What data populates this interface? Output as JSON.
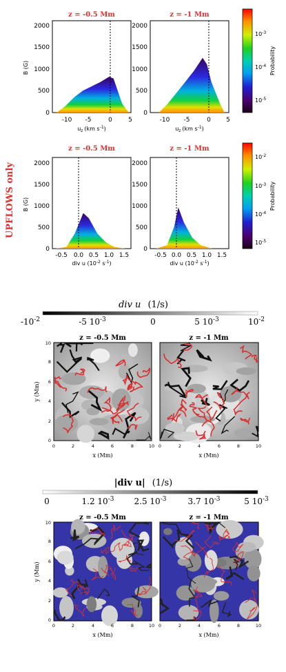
{
  "side_label": "UPFLOWS only",
  "side_label_color": "#e03030",
  "title_color": "#e03030",
  "histograms": {
    "ylabel": "B (G)",
    "yticks": [
      "0",
      "500",
      "1000",
      "1500",
      "2000"
    ],
    "row1_xlabel": "u",
    "row1_xlabel_sub": "z",
    "row1_xlabel_unit": "(km s",
    "row1_xlabel_unit_exp": "-1",
    "row1_xlabel_close": ")",
    "row1_xticks": [
      "-10",
      "-5",
      "0",
      "5"
    ],
    "row2_xlabel": "div u (10",
    "row2_xlabel_exp": "-2",
    "row2_xlabel_unit": " s",
    "row2_xlabel_unit_exp": "-1",
    "row2_xlabel_close": ")",
    "row2_xticks": [
      "-0.5",
      "0.0",
      "0.5",
      "1.0",
      "1.5"
    ],
    "titles": [
      "z = -0.5 Mm",
      "z = -1 Mm",
      "z = -0.5 Mm",
      "z = -1 Mm"
    ],
    "colorbar_label": "Probability",
    "colorbar1_ticks": [
      "10",
      "10",
      "10"
    ],
    "colorbar1_exps": [
      "-3",
      "-4",
      "-5"
    ],
    "colorbar2_ticks": [
      "10",
      "10",
      "10",
      "10"
    ],
    "colorbar2_exps": [
      "-2",
      "-3",
      "-4",
      "-5"
    ]
  },
  "map1": {
    "title": "div u",
    "unit": "(1/s)",
    "ticks": [
      "-10",
      "-5 10",
      "0",
      "5 10",
      "10"
    ],
    "tick_exps": [
      "-2",
      "-3",
      "",
      "-3",
      "-2"
    ],
    "panel_titles": [
      "z = -0.5 Mm",
      "z = -1 Mm"
    ],
    "xlabel": "x (Mm)",
    "ylabel": "y (Mm)",
    "axis_ticks": [
      "0",
      "2",
      "4",
      "6",
      "8",
      "10"
    ]
  },
  "map2": {
    "title": "|div u|",
    "unit": "(1/s)",
    "ticks": [
      "0",
      "1.2 10",
      "2.5 10",
      "3.7 10",
      "5 10"
    ],
    "tick_exps": [
      "",
      "-3",
      "-3",
      "-3",
      "-3"
    ],
    "panel_titles": [
      "z = -0.5 Mm",
      "z = -1 Mm"
    ],
    "xlabel": "x (Mm)",
    "ylabel": "y (Mm)",
    "axis_ticks": [
      "0",
      "2",
      "4",
      "6",
      "8",
      "10"
    ],
    "mask_color": "#3535a8"
  },
  "chart_data": [
    {
      "type": "heatmap",
      "title": "z = -0.5 Mm",
      "xlabel": "u_z (km s^-1)",
      "ylabel": "B (G)",
      "xlim": [
        -13,
        5
      ],
      "ylim": [
        0,
        2100
      ],
      "envelope_x": [
        -12,
        -10,
        -8,
        -6,
        -4,
        -2,
        0,
        1,
        3,
        4.5
      ],
      "envelope_y": [
        0,
        150,
        350,
        500,
        600,
        700,
        820,
        780,
        200,
        0
      ]
    },
    {
      "type": "heatmap",
      "title": "z = -1 Mm",
      "xlabel": "u_z (km s^-1)",
      "ylabel": "B (G)",
      "xlim": [
        -13,
        5
      ],
      "ylim": [
        0,
        2100
      ],
      "envelope_x": [
        -11,
        -9,
        -7,
        -5,
        -3,
        -1,
        0,
        1,
        3,
        4
      ],
      "envelope_y": [
        0,
        200,
        450,
        700,
        950,
        1250,
        1100,
        700,
        200,
        0
      ]
    },
    {
      "type": "heatmap",
      "title": "z = -0.5 Mm",
      "xlabel": "div u (10^-2 s^-1)",
      "ylabel": "B (G)",
      "xlim": [
        -0.9,
        1.9
      ],
      "ylim": [
        0,
        2100
      ],
      "envelope_x": [
        -0.8,
        -0.4,
        -0.1,
        0.2,
        0.4,
        0.7,
        1.0,
        1.3,
        1.7
      ],
      "envelope_y": [
        0,
        40,
        350,
        820,
        700,
        350,
        150,
        40,
        0
      ]
    },
    {
      "type": "heatmap",
      "title": "z = -1 Mm",
      "xlabel": "div u (10^-2 s^-1)",
      "ylabel": "B (G)",
      "xlim": [
        -0.9,
        1.9
      ],
      "ylim": [
        0,
        2100
      ],
      "envelope_x": [
        -0.7,
        -0.3,
        -0.05,
        0.1,
        0.3,
        0.6,
        0.9,
        1.3
      ],
      "envelope_y": [
        0,
        80,
        500,
        950,
        600,
        250,
        80,
        0
      ]
    }
  ]
}
